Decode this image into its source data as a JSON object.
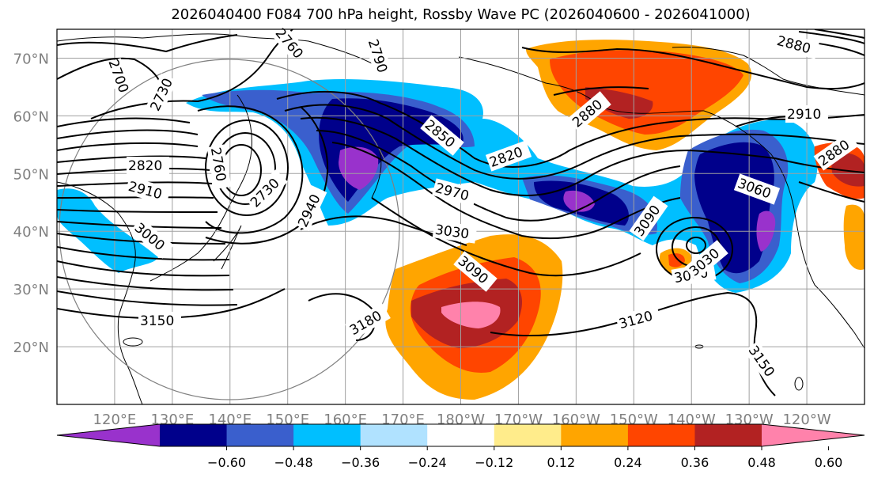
{
  "title": "2026040400 F084 700 hPa height, Rossby Wave PC (2026040600 - 2026041000)",
  "map": {
    "lat_range": [
      10,
      75
    ],
    "lon_range": [
      110,
      250
    ],
    "lat_ticks": [
      {
        "lat": 70,
        "label": "70°N"
      },
      {
        "lat": 60,
        "label": "60°N"
      },
      {
        "lat": 50,
        "label": "50°N"
      },
      {
        "lat": 40,
        "label": "40°N"
      },
      {
        "lat": 30,
        "label": "30°N"
      },
      {
        "lat": 20,
        "label": "20°N"
      }
    ],
    "lon_ticks": [
      {
        "lon": 120,
        "label": "120°E"
      },
      {
        "lon": 130,
        "label": "130°E"
      },
      {
        "lon": 140,
        "label": "140°E"
      },
      {
        "lon": 150,
        "label": "150°E"
      },
      {
        "lon": 160,
        "label": "160°E"
      },
      {
        "lon": 170,
        "label": "170°E"
      },
      {
        "lon": 180,
        "label": "180°W"
      },
      {
        "lon": 190,
        "label": "170°W"
      },
      {
        "lon": 200,
        "label": "160°W"
      },
      {
        "lon": 210,
        "label": "150°W"
      },
      {
        "lon": 220,
        "label": "140°W"
      },
      {
        "lon": 230,
        "label": "130°W"
      },
      {
        "lon": 240,
        "label": "120°W"
      }
    ],
    "grid": true,
    "tick_label_color": "#808080",
    "contour_label_texts": [
      "2700",
      "2730",
      "2790",
      "2760",
      "2820",
      "2880",
      "2910",
      "2940",
      "2970",
      "3000",
      "3030",
      "3060",
      "3090",
      "3120",
      "3150",
      "3180",
      "2850",
      "2730",
      "2880",
      "2760"
    ]
  },
  "colorbar": {
    "ticks": [
      "−0.60",
      "−0.48",
      "−0.36",
      "−0.24",
      "−0.12",
      "0.12",
      "0.24",
      "0.36",
      "0.48",
      "0.60"
    ],
    "colors": [
      "#9932cc",
      "#00008b",
      "#3a5fcd",
      "#00bfff",
      "#b0e2ff",
      "#ffffff",
      "#ffec8b",
      "#ffa500",
      "#ff4500",
      "#b22222",
      "#ff82ab"
    ]
  }
}
